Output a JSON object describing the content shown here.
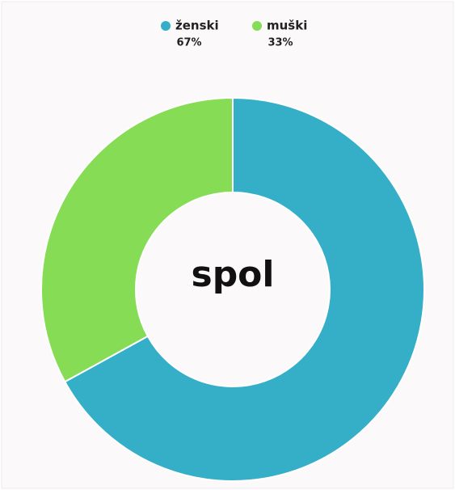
{
  "chart_data": {
    "type": "donut",
    "center_label": "spol",
    "categories": [
      "ženski",
      "muški"
    ],
    "values": [
      67,
      33
    ],
    "value_labels": [
      "67%",
      "33%"
    ],
    "colors": [
      "#35afc7",
      "#86dc54"
    ]
  }
}
